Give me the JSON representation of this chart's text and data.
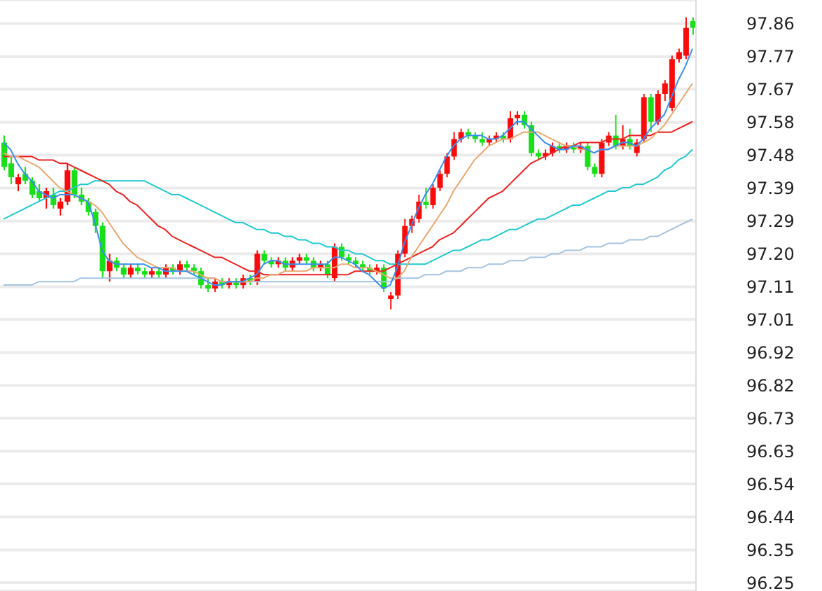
{
  "chart_data": {
    "type": "candlestick",
    "grid": "y",
    "tick_labels": "y",
    "marker": "none",
    "line_style": "solid",
    "ylim": [
      96.23,
      97.93
    ],
    "yticks": [
      {
        "value": 97.862,
        "label": "97.86"
      },
      {
        "value": 97.767,
        "label": "97.77"
      },
      {
        "value": 97.673,
        "label": "97.67"
      },
      {
        "value": 97.578,
        "label": "97.58"
      },
      {
        "value": 97.484,
        "label": "97.48"
      },
      {
        "value": 97.389,
        "label": "97.39"
      },
      {
        "value": 97.294,
        "label": "97.29"
      },
      {
        "value": 97.2,
        "label": "97.20"
      },
      {
        "value": 97.105,
        "label": "97.11"
      },
      {
        "value": 97.011,
        "label": "97.01"
      },
      {
        "value": 96.916,
        "label": "96.92"
      },
      {
        "value": 96.821,
        "label": "96.82"
      },
      {
        "value": 96.727,
        "label": "96.73"
      },
      {
        "value": 96.632,
        "label": "96.63"
      },
      {
        "value": 96.538,
        "label": "96.54"
      },
      {
        "value": 96.443,
        "label": "96.44"
      },
      {
        "value": 96.348,
        "label": "96.35"
      },
      {
        "value": 96.254,
        "label": "96.25"
      }
    ],
    "categories": [
      null,
      null,
      null,
      null,
      null,
      null,
      null,
      null,
      null,
      null,
      null,
      null,
      null,
      null,
      null,
      null,
      null,
      null,
      null,
      null,
      null,
      null,
      null,
      null,
      null,
      null,
      null,
      null,
      null,
      null,
      null,
      null,
      null,
      null,
      null,
      null,
      null,
      null,
      null,
      null,
      null,
      null,
      null,
      null,
      null,
      null,
      null,
      null,
      null,
      null,
      null,
      null,
      null,
      null,
      null,
      null,
      null,
      null,
      null,
      null,
      null,
      null,
      null,
      null,
      null,
      null,
      null,
      null,
      null,
      null,
      null,
      null,
      null,
      null,
      null,
      null,
      null,
      null,
      null,
      null,
      null,
      null,
      null,
      null,
      null,
      null,
      null,
      null,
      null,
      null,
      null,
      null,
      null,
      null,
      null,
      null,
      null,
      null,
      null
    ],
    "ohlc": [
      [
        97.52,
        97.54,
        97.44,
        97.45
      ],
      [
        97.46,
        97.48,
        97.4,
        97.42
      ],
      [
        97.4,
        97.43,
        97.38,
        97.42
      ],
      [
        97.43,
        97.45,
        97.4,
        97.41
      ],
      [
        97.41,
        97.42,
        97.36,
        97.37
      ],
      [
        97.38,
        97.4,
        97.35,
        97.36
      ],
      [
        97.36,
        97.39,
        97.33,
        97.38
      ],
      [
        97.37,
        97.39,
        97.33,
        97.34
      ],
      [
        97.33,
        97.36,
        97.31,
        97.35
      ],
      [
        97.35,
        97.46,
        97.34,
        97.44
      ],
      [
        97.44,
        97.45,
        97.36,
        97.37
      ],
      [
        97.37,
        97.39,
        97.34,
        97.35
      ],
      [
        97.35,
        97.36,
        97.31,
        97.32
      ],
      [
        97.32,
        97.33,
        97.26,
        97.28
      ],
      [
        97.28,
        97.29,
        97.13,
        97.15
      ],
      [
        97.15,
        97.2,
        97.12,
        97.18
      ],
      [
        97.18,
        97.19,
        97.15,
        97.16
      ],
      [
        97.16,
        97.17,
        97.13,
        97.14
      ],
      [
        97.14,
        97.17,
        97.13,
        97.16
      ],
      [
        97.16,
        97.17,
        97.14,
        97.15
      ],
      [
        97.15,
        97.16,
        97.13,
        97.14
      ],
      [
        97.14,
        97.16,
        97.13,
        97.15
      ],
      [
        97.15,
        97.16,
        97.13,
        97.14
      ],
      [
        97.14,
        97.17,
        97.13,
        97.16
      ],
      [
        97.16,
        97.17,
        97.14,
        97.15
      ],
      [
        97.15,
        97.18,
        97.14,
        97.17
      ],
      [
        97.17,
        97.18,
        97.15,
        97.16
      ],
      [
        97.16,
        97.17,
        97.14,
        97.15
      ],
      [
        97.15,
        97.16,
        97.1,
        97.11
      ],
      [
        97.11,
        97.13,
        97.09,
        97.1
      ],
      [
        97.1,
        97.13,
        97.09,
        97.12
      ],
      [
        97.12,
        97.13,
        97.1,
        97.11
      ],
      [
        97.11,
        97.13,
        97.1,
        97.12
      ],
      [
        97.12,
        97.13,
        97.1,
        97.11
      ],
      [
        97.11,
        97.14,
        97.1,
        97.13
      ],
      [
        97.13,
        97.14,
        97.11,
        97.12
      ],
      [
        97.12,
        97.21,
        97.11,
        97.2
      ],
      [
        97.2,
        97.21,
        97.17,
        97.18
      ],
      [
        97.18,
        97.19,
        97.16,
        97.17
      ],
      [
        97.17,
        97.19,
        97.16,
        97.18
      ],
      [
        97.18,
        97.19,
        97.15,
        97.16
      ],
      [
        97.16,
        97.19,
        97.15,
        97.18
      ],
      [
        97.18,
        97.2,
        97.17,
        97.19
      ],
      [
        97.19,
        97.2,
        97.17,
        97.18
      ],
      [
        97.18,
        97.19,
        97.15,
        97.16
      ],
      [
        97.16,
        97.18,
        97.15,
        97.17
      ],
      [
        97.17,
        97.18,
        97.13,
        97.14
      ],
      [
        97.13,
        97.23,
        97.12,
        97.22
      ],
      [
        97.22,
        97.23,
        97.18,
        97.19
      ],
      [
        97.19,
        97.2,
        97.17,
        97.18
      ],
      [
        97.18,
        97.19,
        97.16,
        97.17
      ],
      [
        97.17,
        97.18,
        97.15,
        97.16
      ],
      [
        97.16,
        97.17,
        97.14,
        97.15
      ],
      [
        97.15,
        97.17,
        97.14,
        97.16
      ],
      [
        97.16,
        97.17,
        97.09,
        97.1
      ],
      [
        97.07,
        97.09,
        97.04,
        97.08
      ],
      [
        97.08,
        97.21,
        97.07,
        97.2
      ],
      [
        97.2,
        97.3,
        97.19,
        97.28
      ],
      [
        97.28,
        97.31,
        97.26,
        97.3
      ],
      [
        97.3,
        97.37,
        97.29,
        97.35
      ],
      [
        97.35,
        97.39,
        97.33,
        97.34
      ],
      [
        97.34,
        97.4,
        97.33,
        97.39
      ],
      [
        97.39,
        97.44,
        97.38,
        97.43
      ],
      [
        97.43,
        97.49,
        97.42,
        97.48
      ],
      [
        97.48,
        97.55,
        97.47,
        97.53
      ],
      [
        97.53,
        97.56,
        97.52,
        97.55
      ],
      [
        97.55,
        97.56,
        97.53,
        97.54
      ],
      [
        97.54,
        97.55,
        97.52,
        97.53
      ],
      [
        97.53,
        97.55,
        97.51,
        97.52
      ],
      [
        97.52,
        97.54,
        97.51,
        97.53
      ],
      [
        97.53,
        97.55,
        97.52,
        97.54
      ],
      [
        97.54,
        97.55,
        97.52,
        97.53
      ],
      [
        97.53,
        97.61,
        97.52,
        97.59
      ],
      [
        97.59,
        97.61,
        97.57,
        97.6
      ],
      [
        97.6,
        97.61,
        97.56,
        97.57
      ],
      [
        97.57,
        97.58,
        97.48,
        97.49
      ],
      [
        97.49,
        97.5,
        97.47,
        97.48
      ],
      [
        97.48,
        97.5,
        97.47,
        97.49
      ],
      [
        97.49,
        97.52,
        97.48,
        97.51
      ],
      [
        97.51,
        97.52,
        97.49,
        97.5
      ],
      [
        97.5,
        97.52,
        97.49,
        97.51
      ],
      [
        97.51,
        97.52,
        97.49,
        97.5
      ],
      [
        97.5,
        97.52,
        97.49,
        97.51
      ],
      [
        97.51,
        97.52,
        97.44,
        97.45
      ],
      [
        97.45,
        97.46,
        97.42,
        97.43
      ],
      [
        97.43,
        97.53,
        97.42,
        97.52
      ],
      [
        97.52,
        97.55,
        97.51,
        97.54
      ],
      [
        97.54,
        97.6,
        97.5,
        97.51
      ],
      [
        97.51,
        97.57,
        97.5,
        97.53
      ],
      [
        97.53,
        97.56,
        97.5,
        97.51
      ],
      [
        97.49,
        97.53,
        97.48,
        97.52
      ],
      [
        97.53,
        97.66,
        97.52,
        97.65
      ],
      [
        97.65,
        97.66,
        97.55,
        97.58
      ],
      [
        97.58,
        97.67,
        97.57,
        97.66
      ],
      [
        97.66,
        97.7,
        97.64,
        97.69
      ],
      [
        97.62,
        97.77,
        97.61,
        97.76
      ],
      [
        97.76,
        97.79,
        97.75,
        97.78
      ],
      [
        97.77,
        97.88,
        97.76,
        97.85
      ],
      [
        97.87,
        97.88,
        97.83,
        97.85
      ]
    ],
    "colors": [
      "#18e018",
      "#18e018",
      "#fa0a0a",
      "#18e018",
      "#18e018",
      "#18e018",
      "#fa0a0a",
      "#18e018",
      "#fa0a0a",
      "#fa0a0a",
      "#18e018",
      "#18e018",
      "#18e018",
      "#18e018",
      "#18e018",
      "#fa0a0a",
      "#18e018",
      "#18e018",
      "#fa0a0a",
      "#18e018",
      "#18e018",
      "#fa0a0a",
      "#18e018",
      "#fa0a0a",
      "#18e018",
      "#fa0a0a",
      "#18e018",
      "#18e018",
      "#18e018",
      "#18e018",
      "#fa0a0a",
      "#18e018",
      "#fa0a0a",
      "#18e018",
      "#fa0a0a",
      "#18e018",
      "#fa0a0a",
      "#18e018",
      "#18e018",
      "#fa0a0a",
      "#18e018",
      "#fa0a0a",
      "#fa0a0a",
      "#18e018",
      "#18e018",
      "#fa0a0a",
      "#18e018",
      "#fa0a0a",
      "#18e018",
      "#18e018",
      "#18e018",
      "#18e018",
      "#18e018",
      "#fa0a0a",
      "#18e018",
      "#fa0a0a",
      "#fa0a0a",
      "#fa0a0a",
      "#fa0a0a",
      "#fa0a0a",
      "#18e018",
      "#fa0a0a",
      "#fa0a0a",
      "#fa0a0a",
      "#fa0a0a",
      "#fa0a0a",
      "#18e018",
      "#18e018",
      "#18e018",
      "#fa0a0a",
      "#fa0a0a",
      "#18e018",
      "#fa0a0a",
      "#fa0a0a",
      "#18e018",
      "#18e018",
      "#18e018",
      "#fa0a0a",
      "#fa0a0a",
      "#18e018",
      "#fa0a0a",
      "#18e018",
      "#fa0a0a",
      "#18e018",
      "#18e018",
      "#fa0a0a",
      "#fa0a0a",
      "#18e018",
      "#fa0a0a",
      "#18e018",
      "#fa0a0a",
      "#fa0a0a",
      "#18e018",
      "#fa0a0a",
      "#fa0a0a",
      "#fa0a0a",
      "#fa0a0a",
      "#fa0a0a",
      "#18e018"
    ],
    "series": [
      {
        "type": "line",
        "color": "#a4c4e0",
        "values": [
          97.11,
          97.11,
          97.11,
          97.11,
          97.11,
          97.12,
          97.12,
          97.12,
          97.12,
          97.12,
          97.12,
          97.13,
          97.13,
          97.13,
          97.13,
          97.13,
          97.13,
          97.13,
          97.13,
          97.13,
          97.13,
          97.13,
          97.13,
          97.13,
          97.13,
          97.13,
          97.13,
          97.13,
          97.13,
          97.13,
          97.13,
          97.12,
          97.12,
          97.12,
          97.12,
          97.12,
          97.12,
          97.12,
          97.12,
          97.12,
          97.12,
          97.12,
          97.12,
          97.12,
          97.12,
          97.12,
          97.12,
          97.12,
          97.12,
          97.12,
          97.12,
          97.12,
          97.12,
          97.12,
          97.12,
          97.12,
          97.13,
          97.13,
          97.13,
          97.13,
          97.14,
          97.14,
          97.14,
          97.15,
          97.15,
          97.15,
          97.16,
          97.16,
          97.16,
          97.17,
          97.17,
          97.17,
          97.18,
          97.18,
          97.18,
          97.19,
          97.19,
          97.19,
          97.2,
          97.2,
          97.21,
          97.21,
          97.21,
          97.22,
          97.22,
          97.22,
          97.23,
          97.23,
          97.23,
          97.24,
          97.24,
          97.24,
          97.25,
          97.25,
          97.26,
          97.27,
          97.28,
          97.29,
          97.3
        ]
      },
      {
        "type": "line",
        "color": "#20c8d0",
        "values": [
          97.3,
          97.31,
          97.32,
          97.33,
          97.34,
          97.35,
          97.36,
          97.37,
          97.38,
          97.38,
          97.39,
          97.4,
          97.4,
          97.41,
          97.41,
          97.41,
          97.41,
          97.41,
          97.41,
          97.41,
          97.41,
          97.4,
          97.39,
          97.38,
          97.37,
          97.37,
          97.36,
          97.35,
          97.34,
          97.33,
          97.32,
          97.31,
          97.3,
          97.29,
          97.29,
          97.28,
          97.27,
          97.27,
          97.26,
          97.26,
          97.25,
          97.25,
          97.24,
          97.24,
          97.23,
          97.23,
          97.22,
          97.22,
          97.21,
          97.21,
          97.2,
          97.2,
          97.19,
          97.18,
          97.18,
          97.17,
          97.17,
          97.17,
          97.17,
          97.17,
          97.17,
          97.18,
          97.19,
          97.2,
          97.21,
          97.21,
          97.22,
          97.23,
          97.24,
          97.24,
          97.25,
          97.26,
          97.27,
          97.27,
          97.28,
          97.29,
          97.3,
          97.3,
          97.31,
          97.32,
          97.33,
          97.34,
          97.34,
          97.35,
          97.36,
          97.37,
          97.38,
          97.38,
          97.39,
          97.39,
          97.4,
          97.4,
          97.41,
          97.42,
          97.44,
          97.45,
          97.47,
          97.48,
          97.5
        ]
      },
      {
        "type": "line",
        "color": "#ee2020",
        "values": [
          97.48,
          97.48,
          97.48,
          97.48,
          97.48,
          97.47,
          97.47,
          97.47,
          97.46,
          97.46,
          97.45,
          97.44,
          97.43,
          97.42,
          97.41,
          97.4,
          97.38,
          97.37,
          97.35,
          97.34,
          97.32,
          97.3,
          97.28,
          97.27,
          97.25,
          97.24,
          97.23,
          97.22,
          97.21,
          97.2,
          97.19,
          97.19,
          97.18,
          97.17,
          97.16,
          97.15,
          97.15,
          97.14,
          97.14,
          97.14,
          97.14,
          97.14,
          97.14,
          97.14,
          97.14,
          97.14,
          97.14,
          97.14,
          97.14,
          97.14,
          97.15,
          97.15,
          97.15,
          97.15,
          97.15,
          97.16,
          97.17,
          97.18,
          97.19,
          97.2,
          97.21,
          97.22,
          97.24,
          97.25,
          97.26,
          97.28,
          97.3,
          97.32,
          97.34,
          97.36,
          97.37,
          97.38,
          97.4,
          97.42,
          97.44,
          97.46,
          97.47,
          97.48,
          97.49,
          97.5,
          97.51,
          97.51,
          97.52,
          97.52,
          97.52,
          97.52,
          97.53,
          97.53,
          97.53,
          97.54,
          97.54,
          97.54,
          97.54,
          97.55,
          97.55,
          97.55,
          97.56,
          97.57,
          97.58
        ]
      },
      {
        "type": "line",
        "color": "#e8a870",
        "values": [
          97.49,
          97.48,
          97.48,
          97.47,
          97.46,
          97.45,
          97.43,
          97.41,
          97.39,
          97.38,
          97.37,
          97.36,
          97.35,
          97.34,
          97.32,
          97.29,
          97.26,
          97.23,
          97.21,
          97.19,
          97.18,
          97.17,
          97.16,
          97.16,
          97.16,
          97.15,
          97.15,
          97.15,
          97.14,
          97.13,
          97.13,
          97.12,
          97.12,
          97.12,
          97.12,
          97.12,
          97.13,
          97.13,
          97.14,
          97.14,
          97.15,
          97.15,
          97.15,
          97.15,
          97.16,
          97.16,
          97.16,
          97.16,
          97.17,
          97.17,
          97.16,
          97.16,
          97.16,
          97.15,
          97.14,
          97.13,
          97.13,
          97.15,
          97.19,
          97.22,
          97.25,
          97.28,
          97.31,
          97.34,
          97.38,
          97.41,
          97.44,
          97.47,
          97.49,
          97.51,
          97.52,
          97.53,
          97.53,
          97.54,
          97.55,
          97.55,
          97.55,
          97.54,
          97.53,
          97.52,
          97.51,
          97.51,
          97.5,
          97.5,
          97.49,
          97.5,
          97.5,
          97.51,
          97.51,
          97.51,
          97.51,
          97.52,
          97.53,
          97.55,
          97.57,
          97.6,
          97.63,
          97.66,
          97.69
        ]
      },
      {
        "type": "line",
        "color": "#3a8ef0",
        "values": [
          97.52,
          97.5,
          97.46,
          97.43,
          97.41,
          97.38,
          97.37,
          97.36,
          97.37,
          97.37,
          97.37,
          97.36,
          97.35,
          97.29,
          97.21,
          97.18,
          97.17,
          97.17,
          97.17,
          97.17,
          97.17,
          97.16,
          97.16,
          97.15,
          97.15,
          97.15,
          97.15,
          97.14,
          97.13,
          97.12,
          97.11,
          97.11,
          97.12,
          97.12,
          97.12,
          97.13,
          97.14,
          97.17,
          97.18,
          97.18,
          97.17,
          97.17,
          97.17,
          97.17,
          97.17,
          97.17,
          97.17,
          97.19,
          97.19,
          97.18,
          97.17,
          97.15,
          97.14,
          97.12,
          97.1,
          97.11,
          97.16,
          97.23,
          97.28,
          97.33,
          97.37,
          97.4,
          97.44,
          97.48,
          97.51,
          97.53,
          97.54,
          97.54,
          97.54,
          97.53,
          97.53,
          97.54,
          97.56,
          97.58,
          97.58,
          97.56,
          97.54,
          97.52,
          97.51,
          97.5,
          97.5,
          97.51,
          97.51,
          97.5,
          97.49,
          97.5,
          97.5,
          97.51,
          97.52,
          97.52,
          97.51,
          97.53,
          97.56,
          97.58,
          97.6,
          97.65,
          97.7,
          97.74,
          97.79
        ]
      }
    ]
  }
}
